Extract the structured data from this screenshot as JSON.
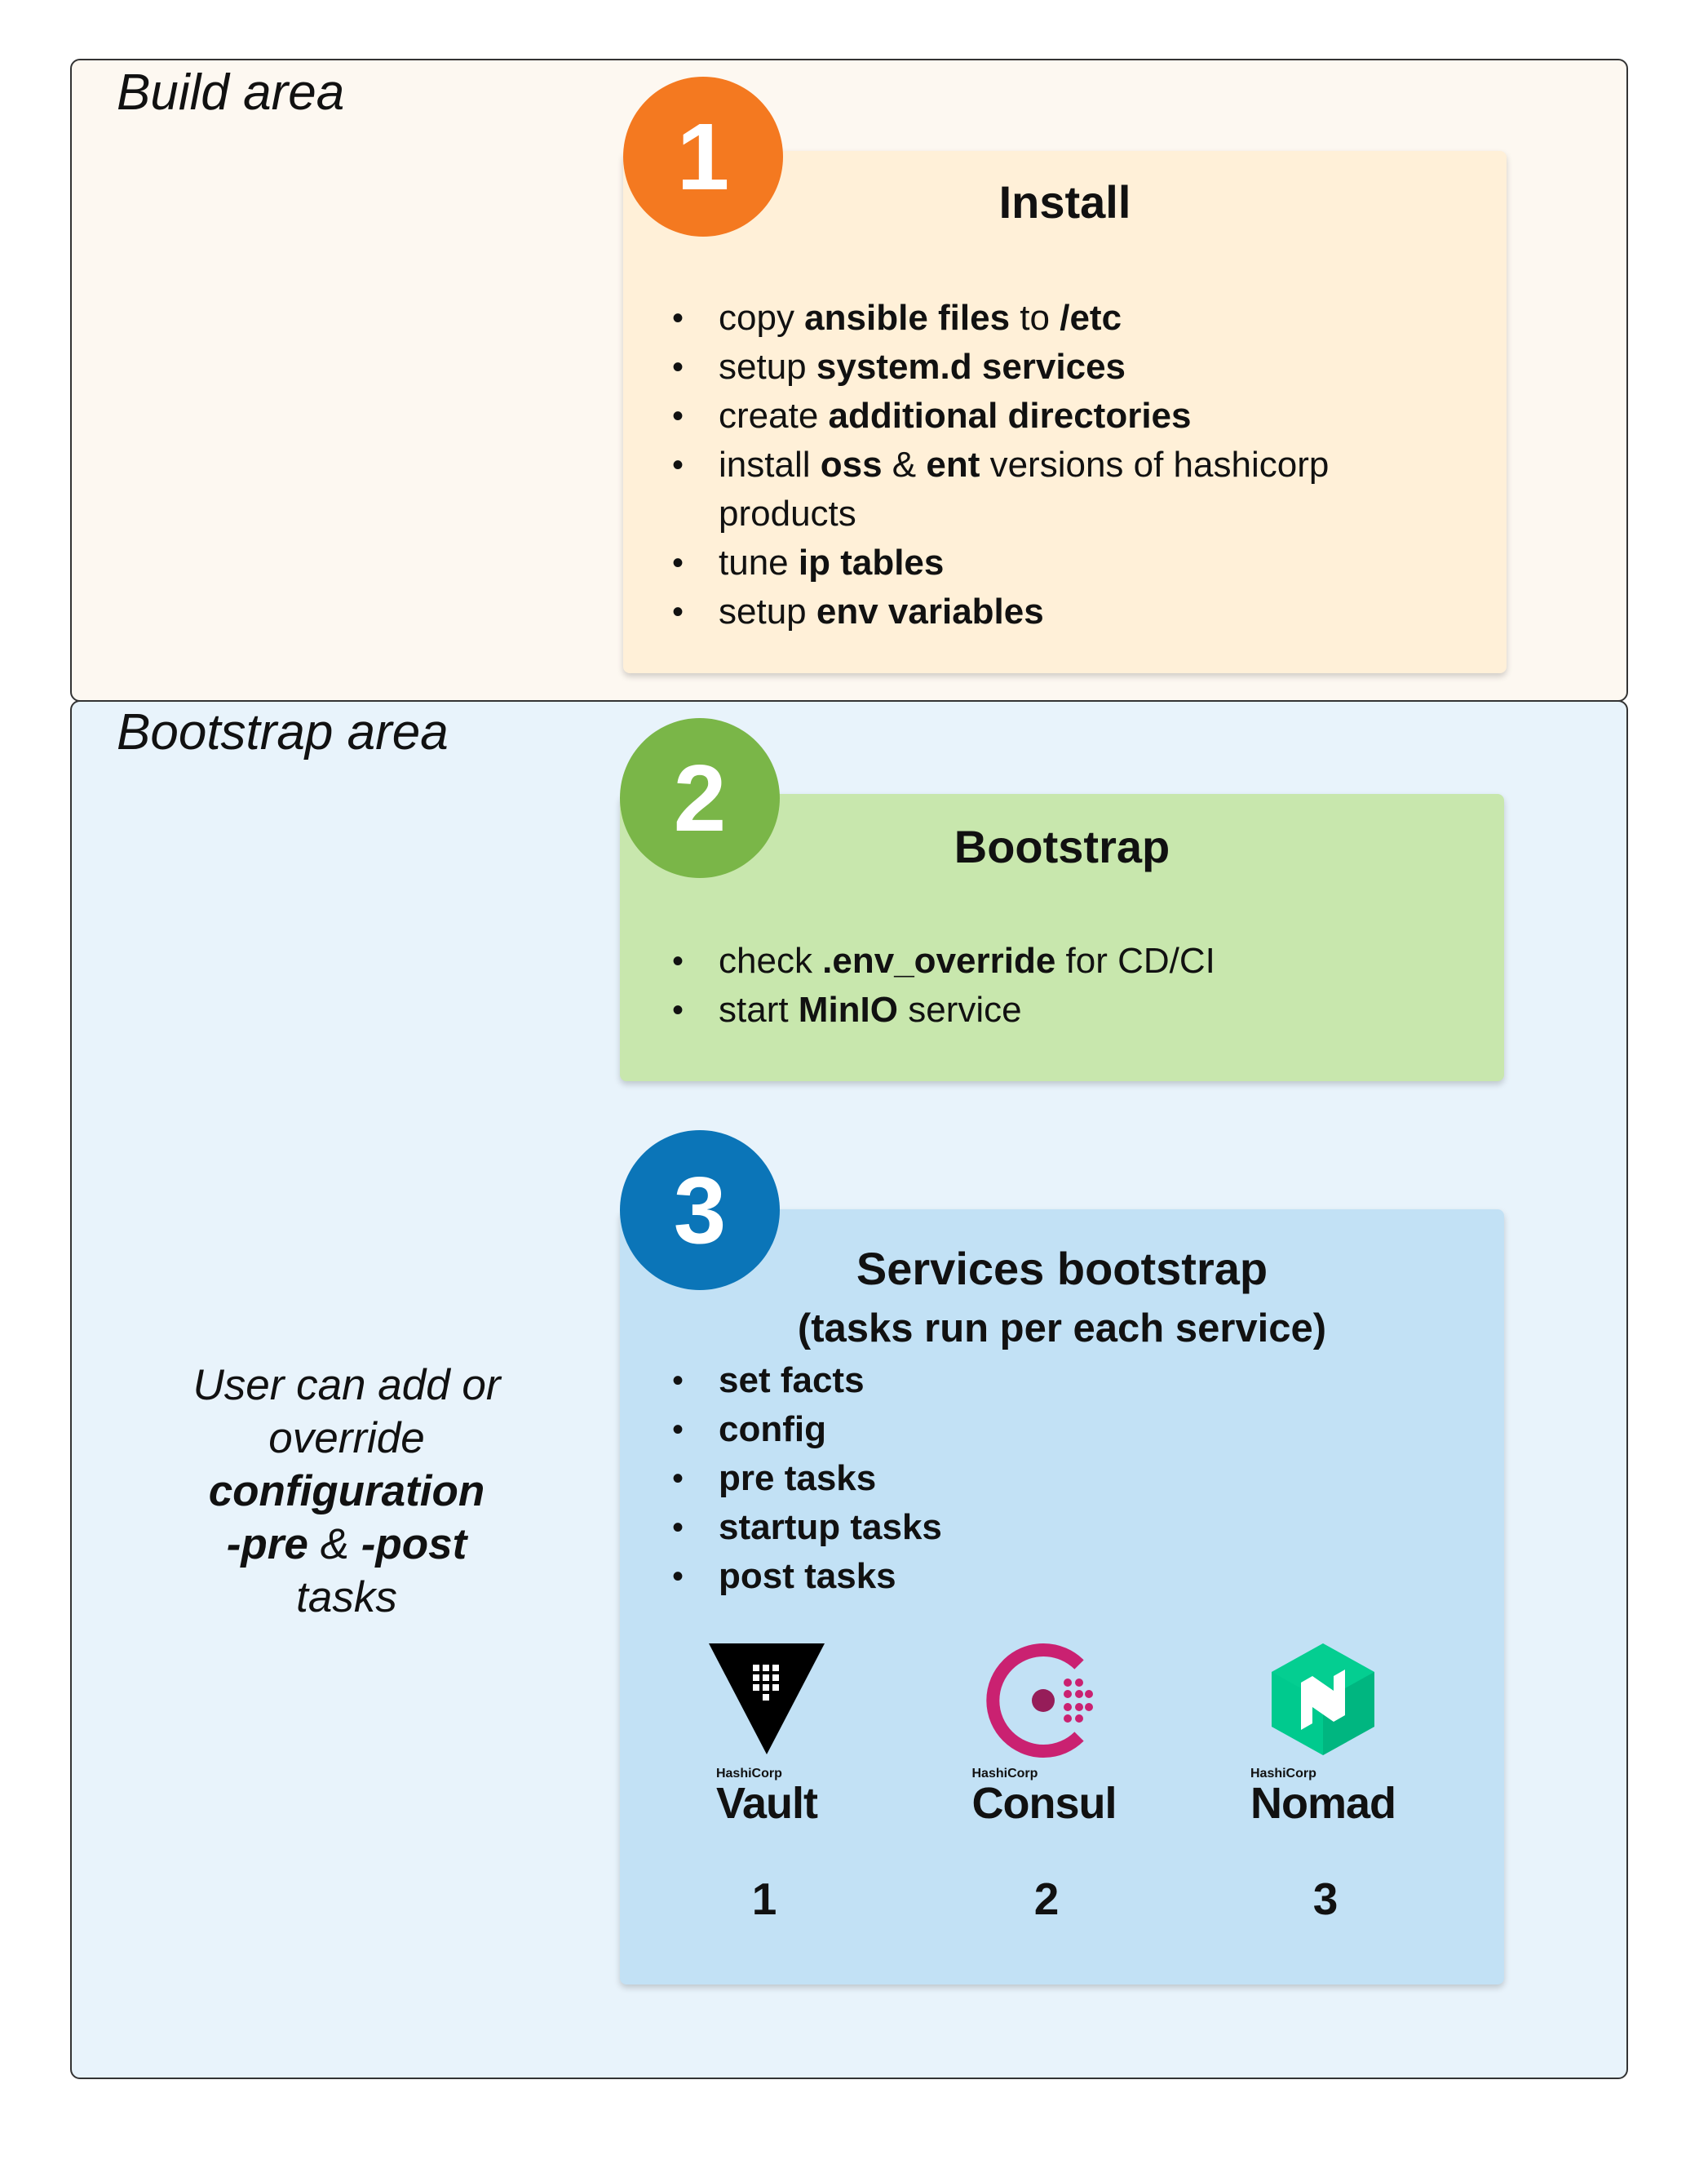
{
  "areas": {
    "build": "Build area",
    "bootstrap": "Bootstrap area"
  },
  "install": {
    "badge": "1",
    "heading": "Install",
    "items": [
      [
        {
          "t": "copy "
        },
        {
          "t": "ansible files",
          "b": true
        },
        {
          "t": " to "
        },
        {
          "t": "/etc",
          "b": true
        }
      ],
      [
        {
          "t": "setup "
        },
        {
          "t": "system.d services",
          "b": true
        }
      ],
      [
        {
          "t": "create "
        },
        {
          "t": "additional directories",
          "b": true
        }
      ],
      [
        {
          "t": "install "
        },
        {
          "t": "oss",
          "b": true
        },
        {
          "t": " & "
        },
        {
          "t": "ent",
          "b": true
        },
        {
          "t": " versions of hashicorp products"
        }
      ],
      [
        {
          "t": "tune "
        },
        {
          "t": "ip tables",
          "b": true
        }
      ],
      [
        {
          "t": "setup "
        },
        {
          "t": "env variables",
          "b": true
        }
      ]
    ]
  },
  "bootstrap": {
    "badge": "2",
    "heading": "Bootstrap",
    "items": [
      [
        {
          "t": "check "
        },
        {
          "t": ".env_override",
          "b": true
        },
        {
          "t": " for CD/CI"
        }
      ],
      [
        {
          "t": "start "
        },
        {
          "t": "MinIO",
          "b": true
        },
        {
          "t": " service"
        }
      ]
    ]
  },
  "services": {
    "badge": "3",
    "heading": "Services bootstrap",
    "subheading": "(tasks run per each service)",
    "items": [
      [
        {
          "t": "set facts",
          "b": true
        }
      ],
      [
        {
          "t": "config",
          "b": true
        }
      ],
      [
        {
          "t": "pre tasks",
          "b": true
        }
      ],
      [
        {
          "t": "startup tasks",
          "b": true
        }
      ],
      [
        {
          "t": "post tasks",
          "b": true
        }
      ]
    ],
    "products": [
      {
        "brand": "HashiCorp",
        "name": "Vault",
        "number": "1",
        "icon": "vault-logo-icon",
        "color": "#000000"
      },
      {
        "brand": "HashiCorp",
        "name": "Consul",
        "number": "2",
        "icon": "consul-logo-icon",
        "color": "#ca2171"
      },
      {
        "brand": "HashiCorp",
        "name": "Nomad",
        "number": "3",
        "icon": "nomad-logo-icon",
        "color": "#00ca8e"
      }
    ]
  },
  "side_note": {
    "line1": "User can add or",
    "line2": "override",
    "line3": "configuration",
    "pre": "-pre",
    "amp": " & ",
    "post": "-post",
    "line5": "tasks"
  },
  "colors": {
    "badge_1": "#f47920",
    "badge_2": "#7ab648",
    "badge_3": "#0b75b8",
    "build_bg": "#fdf8f1",
    "bootstrap_bg": "#e8f3fb"
  }
}
